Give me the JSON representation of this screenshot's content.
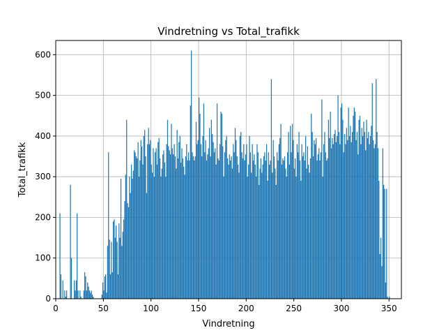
{
  "chart_data": {
    "type": "bar",
    "title": "Vindretning vs Total_trafikk",
    "xlabel": "Vindretning",
    "ylabel": "Total_trafikk",
    "xlim": [
      0,
      363
    ],
    "ylim": [
      0,
      635
    ],
    "xticks": [
      0,
      50,
      100,
      150,
      200,
      250,
      300,
      350
    ],
    "yticks": [
      0,
      100,
      200,
      300,
      400,
      500,
      600
    ],
    "grid": true,
    "bar_color": "#1f77b4",
    "legend": "none",
    "x": [
      0,
      1,
      2,
      3,
      4,
      5,
      6,
      7,
      8,
      9,
      10,
      11,
      12,
      13,
      14,
      15,
      16,
      17,
      18,
      19,
      20,
      21,
      22,
      23,
      24,
      25,
      26,
      27,
      28,
      29,
      30,
      31,
      32,
      33,
      34,
      35,
      36,
      37,
      38,
      39,
      40,
      41,
      42,
      43,
      44,
      45,
      46,
      47,
      48,
      49,
      50,
      51,
      52,
      53,
      54,
      55,
      56,
      57,
      58,
      59,
      60,
      61,
      62,
      63,
      64,
      65,
      66,
      67,
      68,
      69,
      70,
      71,
      72,
      73,
      74,
      75,
      76,
      77,
      78,
      79,
      80,
      81,
      82,
      83,
      84,
      85,
      86,
      87,
      88,
      89,
      90,
      91,
      92,
      93,
      94,
      95,
      96,
      97,
      98,
      99,
      100,
      101,
      102,
      103,
      104,
      105,
      106,
      107,
      108,
      109,
      110,
      111,
      112,
      113,
      114,
      115,
      116,
      117,
      118,
      119,
      120,
      121,
      122,
      123,
      124,
      125,
      126,
      127,
      128,
      129,
      130,
      131,
      132,
      133,
      134,
      135,
      136,
      137,
      138,
      139,
      140,
      141,
      142,
      143,
      144,
      145,
      146,
      147,
      148,
      149,
      150,
      151,
      152,
      153,
      154,
      155,
      156,
      157,
      158,
      159,
      160,
      161,
      162,
      163,
      164,
      165,
      166,
      167,
      168,
      169,
      170,
      171,
      172,
      173,
      174,
      175,
      176,
      177,
      178,
      179,
      180,
      181,
      182,
      183,
      184,
      185,
      186,
      187,
      188,
      189,
      190,
      191,
      192,
      193,
      194,
      195,
      196,
      197,
      198,
      199,
      200,
      201,
      202,
      203,
      204,
      205,
      206,
      207,
      208,
      209,
      210,
      211,
      212,
      213,
      214,
      215,
      216,
      217,
      218,
      219,
      220,
      221,
      222,
      223,
      224,
      225,
      226,
      227,
      228,
      229,
      230,
      231,
      232,
      233,
      234,
      235,
      236,
      237,
      238,
      239,
      240,
      241,
      242,
      243,
      244,
      245,
      246,
      247,
      248,
      249,
      250,
      251,
      252,
      253,
      254,
      255,
      256,
      257,
      258,
      259,
      260,
      261,
      262,
      263,
      264,
      265,
      266,
      267,
      268,
      269,
      270,
      271,
      272,
      273,
      274,
      275,
      276,
      277,
      278,
      279,
      280,
      281,
      282,
      283,
      284,
      285,
      286,
      287,
      288,
      289,
      290,
      291,
      292,
      293,
      294,
      295,
      296,
      297,
      298,
      299,
      300,
      301,
      302,
      303,
      304,
      305,
      306,
      307,
      308,
      309,
      310,
      311,
      312,
      313,
      314,
      315,
      316,
      317,
      318,
      319,
      320,
      321,
      322,
      323,
      324,
      325,
      326,
      327,
      328,
      329,
      330,
      331,
      332,
      333,
      334,
      335,
      336,
      337,
      338,
      339,
      340,
      341,
      342,
      343,
      344,
      345,
      346,
      347,
      348,
      349,
      350,
      351,
      352,
      353,
      354,
      355,
      356,
      357,
      358,
      359
    ],
    "values": [
      0,
      0,
      0,
      0,
      210,
      60,
      0,
      45,
      0,
      20,
      5,
      20,
      0,
      0,
      0,
      280,
      100,
      0,
      0,
      45,
      20,
      45,
      210,
      20,
      0,
      20,
      5,
      0,
      0,
      20,
      65,
      55,
      20,
      40,
      30,
      20,
      15,
      20,
      10,
      5,
      0,
      0,
      0,
      0,
      0,
      0,
      0,
      0,
      10,
      40,
      20,
      55,
      60,
      15,
      130,
      360,
      145,
      60,
      140,
      65,
      190,
      195,
      150,
      180,
      140,
      60,
      185,
      150,
      295,
      130,
      165,
      195,
      240,
      305,
      440,
      235,
      225,
      300,
      260,
      330,
      295,
      315,
      365,
      360,
      350,
      345,
      385,
      300,
      340,
      390,
      375,
      330,
      400,
      415,
      350,
      260,
      380,
      420,
      380,
      390,
      330,
      310,
      370,
      300,
      360,
      370,
      330,
      385,
      395,
      345,
      300,
      320,
      355,
      365,
      335,
      300,
      380,
      440,
      375,
      365,
      355,
      430,
      370,
      355,
      380,
      350,
      320,
      415,
      345,
      385,
      400,
      335,
      370,
      345,
      325,
      305,
      350,
      380,
      340,
      360,
      340,
      475,
      610,
      360,
      350,
      340,
      350,
      435,
      380,
      390,
      495,
      455,
      380,
      350,
      400,
      480,
      360,
      390,
      340,
      355,
      370,
      420,
      350,
      440,
      405,
      385,
      360,
      370,
      330,
      480,
      345,
      340,
      380,
      460,
      455,
      375,
      300,
      360,
      390,
      400,
      345,
      330,
      355,
      340,
      350,
      320,
      380,
      360,
      420,
      390,
      350,
      330,
      310,
      400,
      410,
      360,
      345,
      380,
      340,
      355,
      380,
      300,
      330,
      400,
      360,
      310,
      380,
      340,
      355,
      330,
      300,
      380,
      360,
      280,
      320,
      345,
      310,
      330,
      350,
      360,
      340,
      380,
      290,
      360,
      330,
      340,
      540,
      310,
      390,
      350,
      320,
      280,
      360,
      340,
      380,
      395,
      430,
      330,
      345,
      340,
      350,
      320,
      300,
      360,
      410,
      330,
      425,
      360,
      430,
      390,
      320,
      345,
      300,
      380,
      360,
      410,
      340,
      290,
      380,
      350,
      360,
      340,
      400,
      320,
      375,
      330,
      310,
      345,
      455,
      410,
      350,
      390,
      380,
      395,
      340,
      355,
      370,
      340,
      360,
      490,
      300,
      380,
      410,
      360,
      340,
      345,
      440,
      395,
      460,
      370,
      395,
      380,
      405,
      415,
      385,
      400,
      500,
      410,
      380,
      470,
      480,
      440,
      360,
      405,
      380,
      420,
      390,
      470,
      400,
      425,
      385,
      410,
      450,
      470,
      460,
      390,
      410,
      355,
      440,
      450,
      380,
      420,
      400,
      435,
      410,
      365,
      440,
      395,
      410,
      380,
      400,
      425,
      530,
      390,
      370,
      380,
      540,
      410,
      370,
      290,
      110,
      150,
      80,
      370,
      280,
      270,
      40,
      270,
      5,
      0,
      5,
      0,
      0,
      0,
      0,
      0,
      0,
      0,
      0,
      0
    ]
  }
}
